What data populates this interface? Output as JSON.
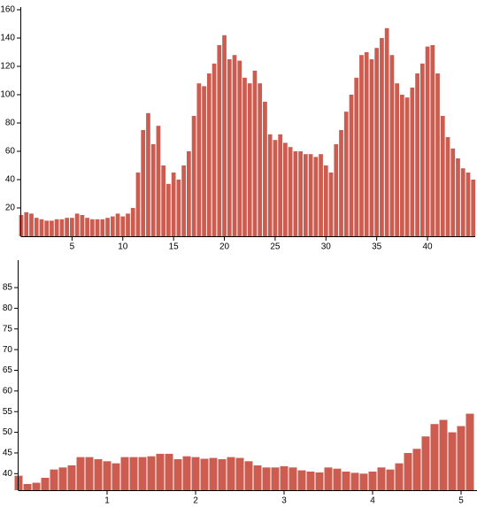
{
  "chart_data": [
    {
      "type": "bar",
      "color": "#cd5c50",
      "x": [
        0,
        0.5,
        1,
        1.5,
        2,
        2.5,
        3,
        3.5,
        4,
        4.5,
        5,
        5.5,
        6,
        6.5,
        7,
        7.5,
        8,
        8.5,
        9,
        9.5,
        10,
        10.5,
        11,
        11.5,
        12,
        12.5,
        13,
        13.5,
        14,
        14.5,
        15,
        15.5,
        16,
        16.5,
        17,
        17.5,
        18,
        18.5,
        19,
        19.5,
        20,
        20.5,
        21,
        21.5,
        22,
        22.5,
        23,
        23.5,
        24,
        24.5,
        25,
        25.5,
        26,
        26.5,
        27,
        27.5,
        28,
        28.5,
        29,
        29.5,
        30,
        30.5,
        31,
        31.5,
        32,
        32.5,
        33,
        33.5,
        34,
        34.5,
        35,
        35.5,
        36,
        36.5,
        37,
        37.5,
        38,
        38.5,
        39,
        39.5,
        40,
        40.5,
        41,
        41.5,
        42,
        42.5,
        43,
        43.5,
        44,
        44.5
      ],
      "values": [
        15,
        17,
        16,
        13,
        12,
        11,
        11,
        12,
        12,
        13,
        13,
        16,
        15,
        13,
        12,
        12,
        12,
        13,
        14,
        16,
        14,
        16,
        20,
        45,
        75,
        87,
        65,
        78,
        50,
        37,
        45,
        40,
        50,
        60,
        85,
        108,
        106,
        115,
        122,
        135,
        142,
        125,
        128,
        124,
        112,
        108,
        117,
        108,
        95,
        72,
        68,
        72,
        66,
        63,
        60,
        60,
        58,
        58,
        56,
        58,
        50,
        45,
        65,
        75,
        88,
        100,
        112,
        128,
        130,
        125,
        133,
        140,
        147,
        128,
        108,
        100,
        98,
        105,
        115,
        122,
        134,
        135,
        115,
        85,
        70,
        62,
        55,
        48,
        45,
        40
      ],
      "xlim": [
        0,
        44.7
      ],
      "ylim": [
        0,
        160
      ],
      "xticks": [
        5,
        10,
        15,
        20,
        25,
        30,
        35,
        40
      ],
      "yticks": [
        20,
        40,
        60,
        80,
        100,
        120,
        140,
        160
      ]
    },
    {
      "type": "bar",
      "color": "#cd5c50",
      "x": [
        0,
        0.1,
        0.2,
        0.3,
        0.4,
        0.5,
        0.6,
        0.7,
        0.8,
        0.9,
        1,
        1.1,
        1.2,
        1.3,
        1.4,
        1.5,
        1.6,
        1.7,
        1.8,
        1.9,
        2,
        2.1,
        2.2,
        2.3,
        2.4,
        2.5,
        2.6,
        2.7,
        2.8,
        2.9,
        3,
        3.1,
        3.2,
        3.3,
        3.4,
        3.5,
        3.6,
        3.7,
        3.8,
        3.9,
        4,
        4.1,
        4.2,
        4.3,
        4.4,
        4.5,
        4.6,
        4.7,
        4.8,
        4.9,
        5,
        5.1
      ],
      "values": [
        39.5,
        37.5,
        37.8,
        39,
        41,
        41.5,
        42,
        44,
        44,
        43.5,
        43,
        42.5,
        44,
        44,
        44,
        44.2,
        44.8,
        44.8,
        43.5,
        44.2,
        44,
        43.6,
        43.8,
        43.5,
        44,
        43.8,
        43,
        42,
        41.5,
        41.5,
        41.8,
        41.5,
        40.8,
        40.5,
        40.3,
        41.5,
        41.2,
        40.5,
        40.2,
        40,
        40.5,
        41.5,
        41,
        42.5,
        45,
        46,
        49,
        52,
        53,
        50,
        51.5,
        54.5
      ],
      "xlim": [
        0,
        5.18
      ],
      "ylim": [
        36,
        91
      ],
      "xticks": [
        1,
        2,
        3,
        4,
        5
      ],
      "yticks": [
        40,
        45,
        50,
        55,
        60,
        65,
        70,
        75,
        80,
        85
      ]
    }
  ]
}
